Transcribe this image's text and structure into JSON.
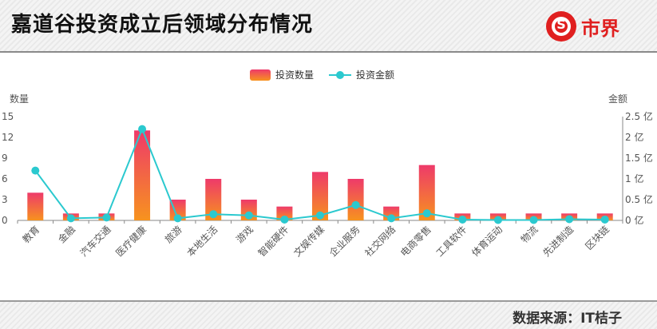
{
  "header": {
    "title": "嘉道谷投资成立后领域分布情况",
    "logo_text": "市界",
    "logo_letter": "S"
  },
  "footer": {
    "source": "数据来源：IT桔子"
  },
  "colors": {
    "bar_top": "#ee3a6a",
    "bar_bottom": "#f7931e",
    "line": "#2bc9cf",
    "logo": "#e01f1f"
  },
  "chart_data": {
    "type": "bar+line",
    "categories": [
      "教育",
      "金融",
      "汽车交通",
      "医疗健康",
      "旅游",
      "本地生活",
      "游戏",
      "智能硬件",
      "文娱传媒",
      "企业服务",
      "社交网络",
      "电商零售",
      "工具软件",
      "体育运动",
      "物流",
      "先进制造",
      "区块链"
    ],
    "series": [
      {
        "name": "投资数量",
        "type": "bar",
        "axis": "left",
        "values": [
          4,
          1,
          1,
          13,
          3,
          6,
          3,
          2,
          7,
          6,
          2,
          8,
          1,
          1,
          1,
          1,
          1
        ]
      },
      {
        "name": "投资金额",
        "type": "line",
        "axis": "right",
        "values": [
          1.2,
          0.05,
          0.07,
          2.2,
          0.05,
          0.15,
          0.12,
          0.02,
          0.12,
          0.37,
          0.05,
          0.17,
          0.02,
          0.01,
          0.01,
          0.03,
          0.02
        ]
      }
    ],
    "y_left": {
      "label": "数量",
      "ticks": [
        0,
        3,
        6,
        9,
        12,
        15
      ],
      "ylim": [
        0,
        15
      ]
    },
    "y_right": {
      "label": "金额",
      "ticks": [
        "0 亿",
        "0.5 亿",
        "1 亿",
        "1.5 亿",
        "2 亿",
        "2.5 亿"
      ],
      "ylim": [
        0,
        2.5
      ]
    },
    "legend": {
      "position": "top-center"
    }
  }
}
